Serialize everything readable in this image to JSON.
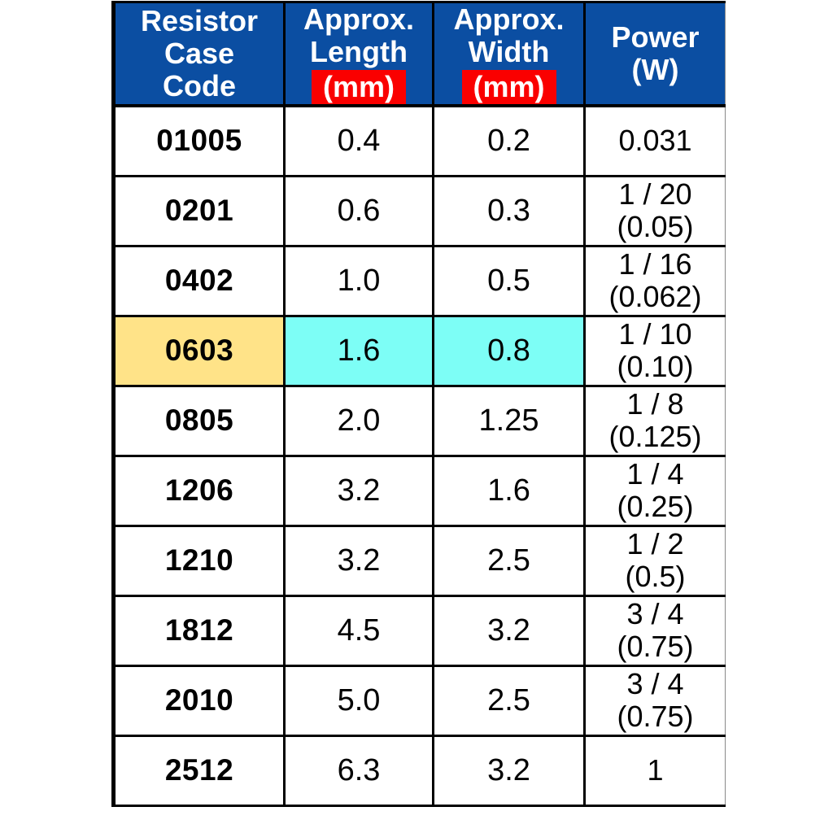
{
  "table": {
    "header": [
      {
        "lines": [
          "Resistor",
          "Case",
          "Code"
        ]
      },
      {
        "lines": [
          "Approx.",
          "Length"
        ],
        "unit": "(mm)"
      },
      {
        "lines": [
          "Approx.",
          "Width"
        ],
        "unit": "(mm)"
      },
      {
        "lines": [
          "Power",
          "(W)"
        ]
      }
    ],
    "rows": [
      {
        "code": "01005",
        "length_mm": "0.4",
        "width_mm": "0.2",
        "power_w": [
          "0.031"
        ],
        "highlighted": false
      },
      {
        "code": "0201",
        "length_mm": "0.6",
        "width_mm": "0.3",
        "power_w": [
          "1 / 20",
          "(0.05)"
        ],
        "highlighted": false
      },
      {
        "code": "0402",
        "length_mm": "1.0",
        "width_mm": "0.5",
        "power_w": [
          "1 / 16",
          "(0.062)"
        ],
        "highlighted": false
      },
      {
        "code": "0603",
        "length_mm": "1.6",
        "width_mm": "0.8",
        "power_w": [
          "1 / 10",
          "(0.10)"
        ],
        "highlighted": true
      },
      {
        "code": "0805",
        "length_mm": "2.0",
        "width_mm": "1.25",
        "power_w": [
          "1 / 8",
          "(0.125)"
        ],
        "highlighted": false
      },
      {
        "code": "1206",
        "length_mm": "3.2",
        "width_mm": "1.6",
        "power_w": [
          "1 / 4",
          "(0.25)"
        ],
        "highlighted": false
      },
      {
        "code": "1210",
        "length_mm": "3.2",
        "width_mm": "2.5",
        "power_w": [
          "1 / 2",
          "(0.5)"
        ],
        "highlighted": false
      },
      {
        "code": "1812",
        "length_mm": "4.5",
        "width_mm": "3.2",
        "power_w": [
          "3 / 4",
          "(0.75)"
        ],
        "highlighted": false
      },
      {
        "code": "2010",
        "length_mm": "5.0",
        "width_mm": "2.5",
        "power_w": [
          "3 / 4",
          "(0.75)"
        ],
        "highlighted": false
      },
      {
        "code": "2512",
        "length_mm": "6.3",
        "width_mm": "3.2",
        "power_w": [
          "1"
        ],
        "highlighted": false
      }
    ]
  },
  "colors": {
    "header_bg": "#0B4EA2",
    "header_text": "#FFFFFF",
    "unit_badge_bg": "#FA0000",
    "unit_badge_text": "#FFFFFF",
    "highlight_code_bg": "#FFE388",
    "highlight_dims_bg": "#7DFEF6",
    "border": "#000000"
  }
}
